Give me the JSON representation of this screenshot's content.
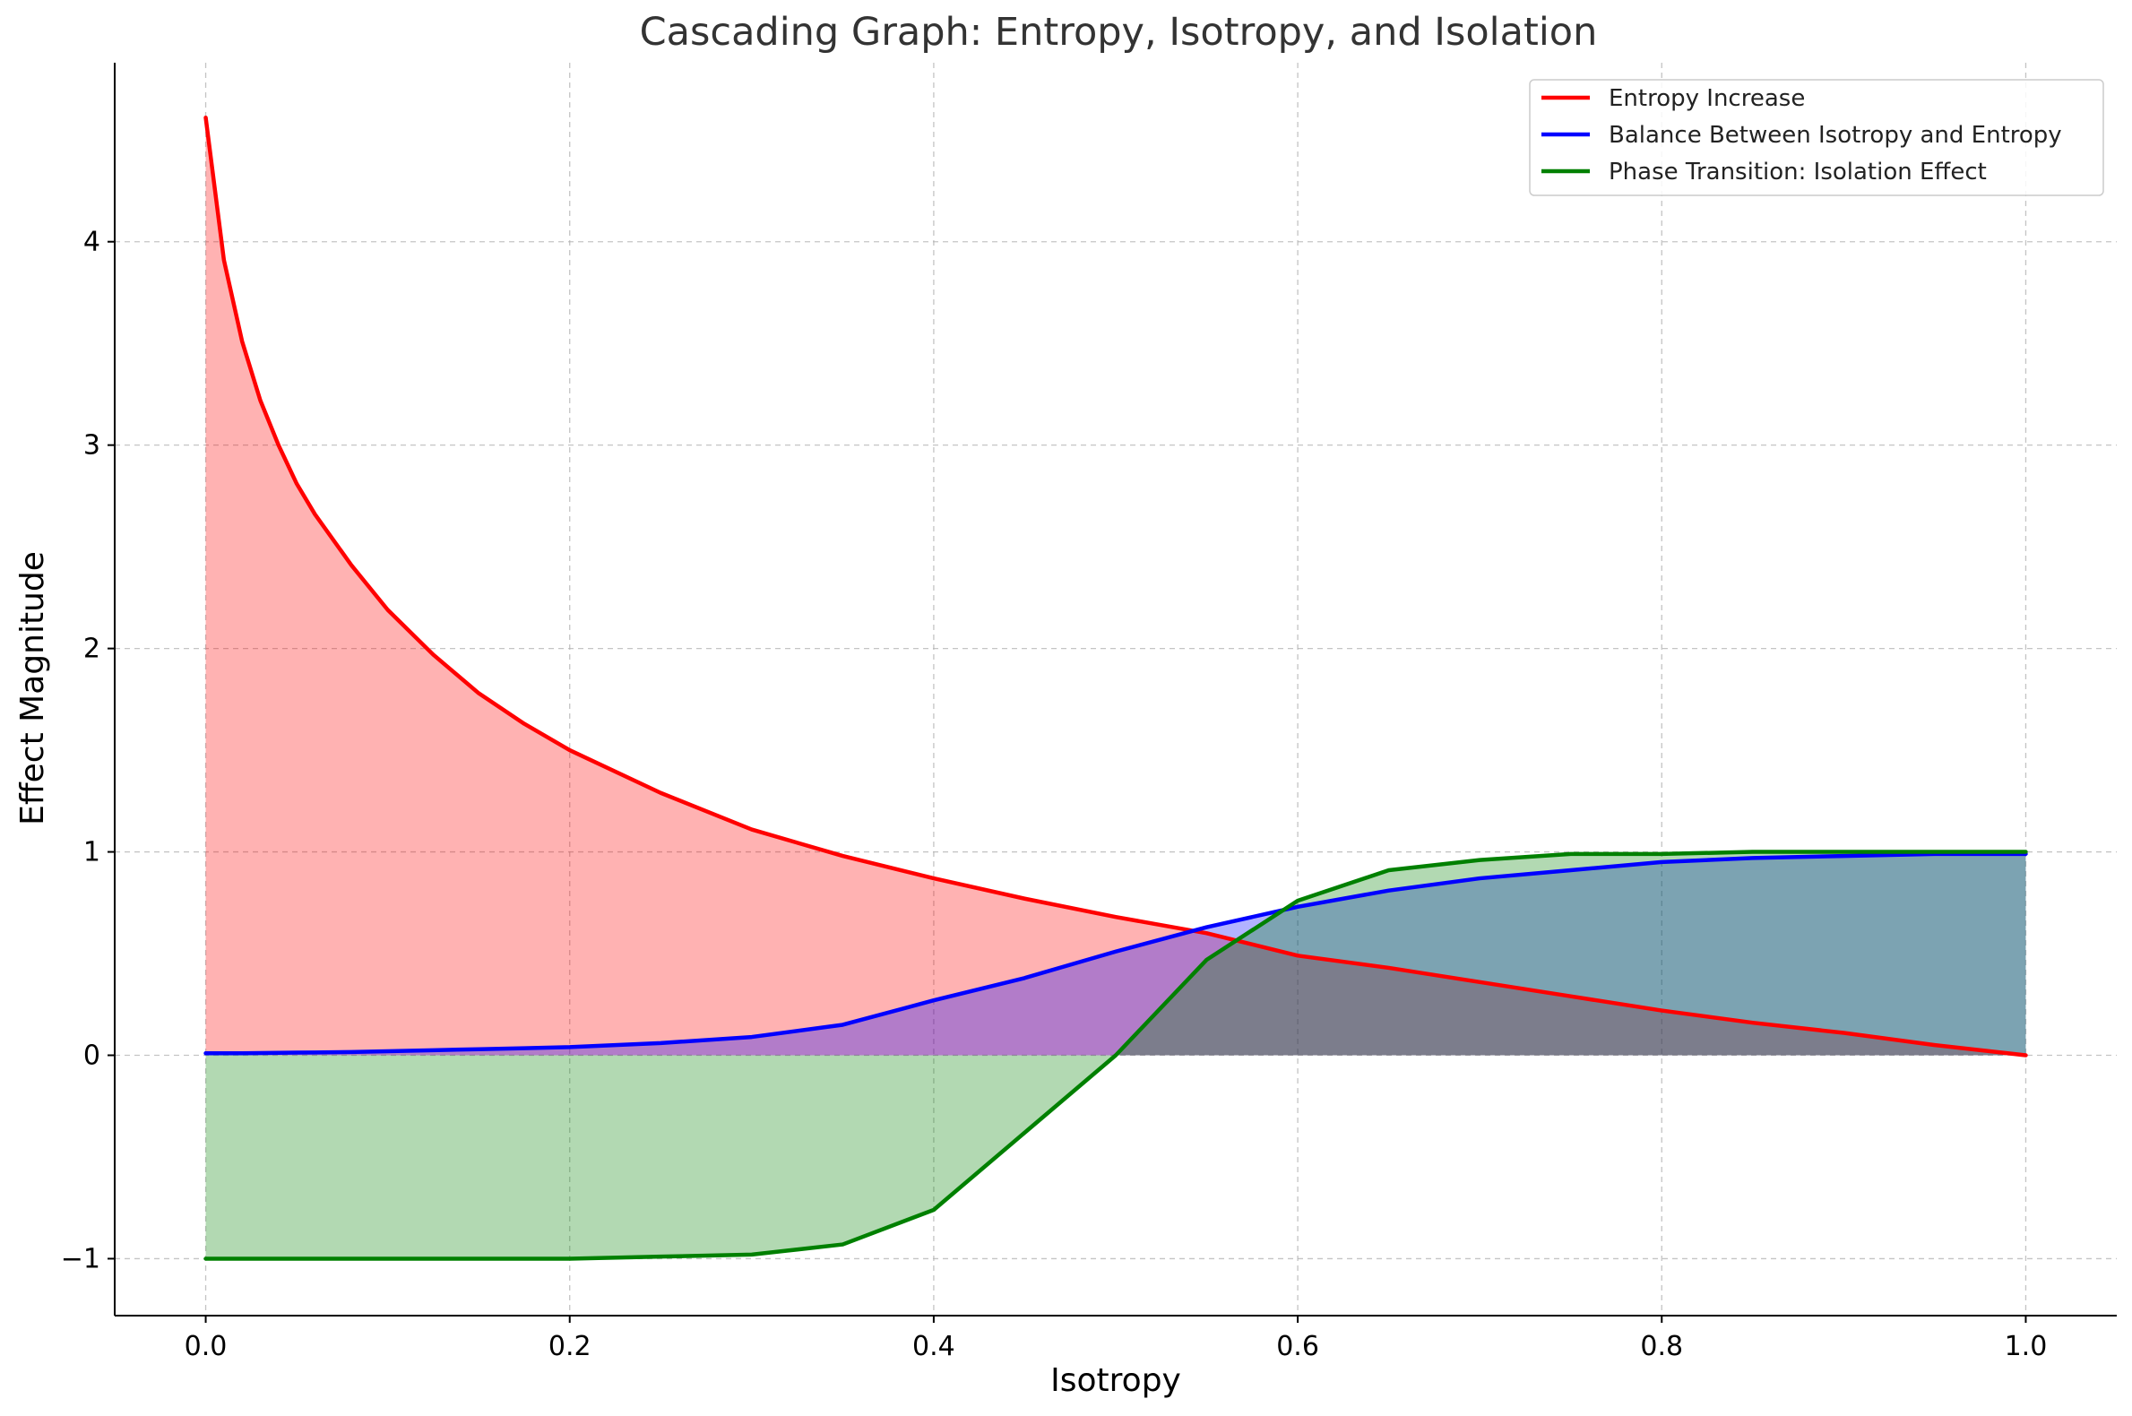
{
  "chart_data": {
    "type": "area",
    "title": "Cascading Graph: Entropy, Isotropy, and Isolation",
    "xlabel": "Isotropy",
    "ylabel": "Effect Magnitude",
    "xlim": [
      -0.05,
      1.05
    ],
    "ylim": [
      -1.28,
      4.88
    ],
    "xticks": [
      0.0,
      0.2,
      0.4,
      0.6,
      0.8,
      1.0
    ],
    "xtick_labels": [
      "0.0",
      "0.2",
      "0.4",
      "0.6",
      "0.8",
      "1.0"
    ],
    "yticks": [
      -1,
      0,
      1,
      2,
      3,
      4
    ],
    "ytick_labels": [
      "−1",
      "0",
      "1",
      "2",
      "3",
      "4"
    ],
    "grid": true,
    "legend_position": "top-right",
    "x": [
      0.0,
      0.01,
      0.02,
      0.03,
      0.04,
      0.05,
      0.06,
      0.08,
      0.1,
      0.125,
      0.15,
      0.175,
      0.2,
      0.25,
      0.3,
      0.35,
      0.4,
      0.45,
      0.5,
      0.55,
      0.6,
      0.65,
      0.7,
      0.75,
      0.8,
      0.85,
      0.9,
      0.95,
      1.0
    ],
    "series": [
      {
        "name": "Entropy Increase",
        "color": "#ff0000",
        "fill": "#ff0000",
        "fill_alpha": 0.3,
        "values": [
          4.61,
          3.91,
          3.51,
          3.22,
          3.0,
          2.81,
          2.66,
          2.41,
          2.19,
          1.97,
          1.78,
          1.63,
          1.5,
          1.29,
          1.11,
          0.98,
          0.87,
          0.77,
          0.68,
          0.6,
          0.49,
          0.43,
          0.36,
          0.29,
          0.22,
          0.16,
          0.11,
          0.05,
          0.0
        ]
      },
      {
        "name": "Balance Between Isotropy and Entropy",
        "color": "#0000ff",
        "fill": "#0000ff",
        "fill_alpha": 0.3,
        "values": [
          0.01,
          0.01,
          0.01,
          0.011,
          0.012,
          0.013,
          0.014,
          0.016,
          0.02,
          0.025,
          0.03,
          0.035,
          0.04,
          0.06,
          0.09,
          0.15,
          0.27,
          0.38,
          0.51,
          0.63,
          0.73,
          0.81,
          0.87,
          0.91,
          0.95,
          0.97,
          0.98,
          0.99,
          0.99
        ]
      },
      {
        "name": "Phase Transition: Isolation Effect",
        "color": "#008000",
        "fill": "#008000",
        "fill_alpha": 0.3,
        "values": [
          -1.0,
          -1.0,
          -1.0,
          -1.0,
          -1.0,
          -1.0,
          -1.0,
          -1.0,
          -1.0,
          -1.0,
          -1.0,
          -1.0,
          -1.0,
          -0.99,
          -0.98,
          -0.93,
          -0.76,
          -0.38,
          0.0,
          0.47,
          0.76,
          0.91,
          0.96,
          0.99,
          0.99,
          1.0,
          1.0,
          1.0,
          1.0
        ]
      }
    ]
  }
}
